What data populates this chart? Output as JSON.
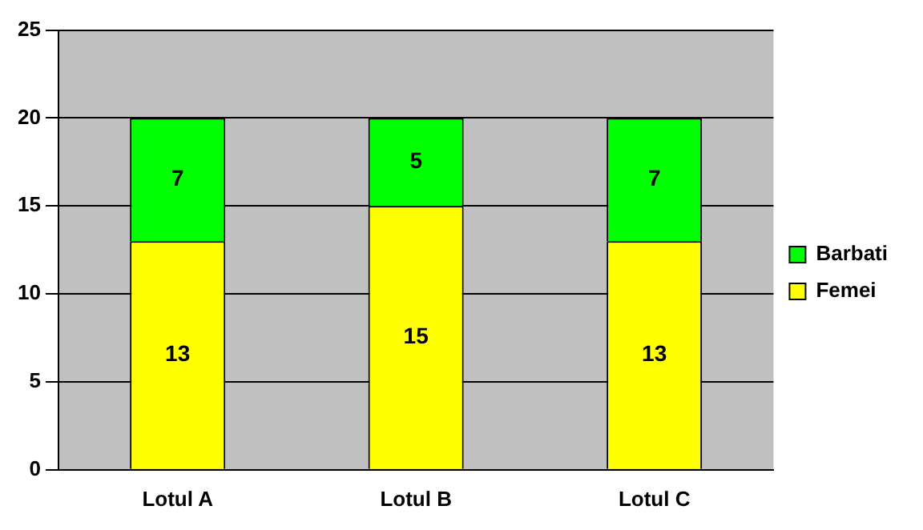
{
  "chart_data": {
    "type": "bar",
    "stacked": true,
    "categories": [
      "Lotul A",
      "Lotul B",
      "Lotul C"
    ],
    "series": [
      {
        "name": "Femei",
        "color": "#ffff00",
        "values": [
          13,
          15,
          13
        ]
      },
      {
        "name": "Barbati",
        "color": "#00ff00",
        "values": [
          7,
          5,
          7
        ]
      }
    ],
    "ylim": [
      0,
      25
    ],
    "yticks": [
      0,
      5,
      10,
      15,
      20,
      25
    ],
    "grid": "y",
    "legend": "right",
    "data_labels": true
  }
}
